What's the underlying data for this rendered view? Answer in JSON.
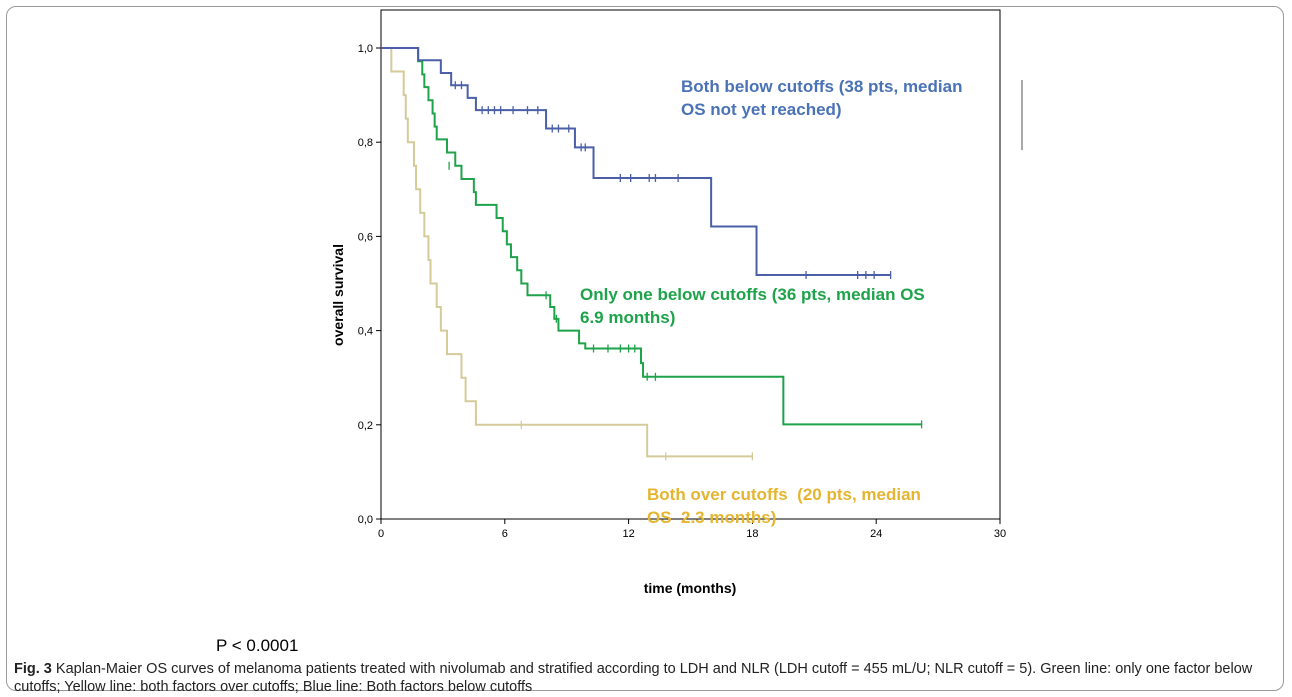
{
  "chart_data": {
    "type": "line",
    "xlabel": "time (months)",
    "ylabel": "overall survival",
    "xlim": [
      0,
      30
    ],
    "ylim": [
      0,
      1.0
    ],
    "x_ticks": [
      0,
      6,
      12,
      18,
      24,
      30
    ],
    "x_tick_labels": [
      "0",
      "6",
      "12",
      "18",
      "24",
      "30"
    ],
    "y_ticks": [
      0,
      0.2,
      0.4,
      0.6,
      0.8,
      1.0
    ],
    "y_tick_labels": [
      "0,0",
      "0,2",
      "0,4",
      "0,6",
      "0,8",
      "1,0"
    ],
    "grid": false,
    "series": [
      {
        "color": "#4a5fa8",
        "steps": [
          [
            0,
            1.0
          ],
          [
            1.8,
            0.974
          ],
          [
            2.9,
            0.947
          ],
          [
            3.4,
            0.921
          ],
          [
            4.2,
            0.894
          ],
          [
            4.6,
            0.868
          ],
          [
            8.0,
            0.829
          ],
          [
            9.4,
            0.789
          ],
          [
            10.3,
            0.724
          ],
          [
            16.0,
            0.621
          ],
          [
            18.2,
            0.518
          ],
          [
            24.7,
            0.518
          ]
        ],
        "censors": [
          [
            3.6,
            0.921
          ],
          [
            3.9,
            0.921
          ],
          [
            4.9,
            0.868
          ],
          [
            5.2,
            0.868
          ],
          [
            5.5,
            0.868
          ],
          [
            5.8,
            0.868
          ],
          [
            6.4,
            0.868
          ],
          [
            7.1,
            0.868
          ],
          [
            7.6,
            0.868
          ],
          [
            8.3,
            0.829
          ],
          [
            8.6,
            0.829
          ],
          [
            9.1,
            0.829
          ],
          [
            9.7,
            0.789
          ],
          [
            9.9,
            0.789
          ],
          [
            11.6,
            0.724
          ],
          [
            12.1,
            0.724
          ],
          [
            13.0,
            0.724
          ],
          [
            13.3,
            0.724
          ],
          [
            14.4,
            0.724
          ],
          [
            20.6,
            0.518
          ],
          [
            23.1,
            0.518
          ],
          [
            23.5,
            0.518
          ],
          [
            23.9,
            0.518
          ],
          [
            24.7,
            0.518
          ]
        ]
      },
      {
        "color": "#1ea34a",
        "steps": [
          [
            0,
            1.0
          ],
          [
            1.8,
            0.972
          ],
          [
            2.0,
            0.944
          ],
          [
            2.1,
            0.917
          ],
          [
            2.3,
            0.889
          ],
          [
            2.5,
            0.861
          ],
          [
            2.6,
            0.833
          ],
          [
            2.7,
            0.806
          ],
          [
            3.2,
            0.778
          ],
          [
            3.6,
            0.75
          ],
          [
            3.9,
            0.722
          ],
          [
            4.5,
            0.694
          ],
          [
            4.6,
            0.667
          ],
          [
            5.6,
            0.639
          ],
          [
            5.9,
            0.611
          ],
          [
            6.1,
            0.583
          ],
          [
            6.3,
            0.556
          ],
          [
            6.6,
            0.528
          ],
          [
            6.8,
            0.5
          ],
          [
            7.1,
            0.475
          ],
          [
            8.2,
            0.45
          ],
          [
            8.4,
            0.425
          ],
          [
            8.6,
            0.4
          ],
          [
            9.6,
            0.373
          ],
          [
            9.9,
            0.362
          ],
          [
            12.6,
            0.331
          ],
          [
            12.7,
            0.302
          ],
          [
            19.5,
            0.201
          ],
          [
            26.2,
            0.201
          ]
        ],
        "censors": [
          [
            3.3,
            0.75
          ],
          [
            8.0,
            0.475
          ],
          [
            8.5,
            0.425
          ],
          [
            10.3,
            0.362
          ],
          [
            11.0,
            0.362
          ],
          [
            11.6,
            0.362
          ],
          [
            12.0,
            0.362
          ],
          [
            12.3,
            0.362
          ],
          [
            12.9,
            0.302
          ],
          [
            13.3,
            0.302
          ],
          [
            26.2,
            0.201
          ]
        ]
      },
      {
        "color": "#d4ca9a",
        "steps": [
          [
            0,
            1.0
          ],
          [
            0.5,
            0.95
          ],
          [
            1.1,
            0.9
          ],
          [
            1.2,
            0.85
          ],
          [
            1.3,
            0.8
          ],
          [
            1.6,
            0.75
          ],
          [
            1.7,
            0.7
          ],
          [
            1.9,
            0.65
          ],
          [
            2.1,
            0.6
          ],
          [
            2.3,
            0.55
          ],
          [
            2.4,
            0.5
          ],
          [
            2.7,
            0.45
          ],
          [
            2.9,
            0.4
          ],
          [
            3.2,
            0.35
          ],
          [
            3.9,
            0.3
          ],
          [
            4.1,
            0.25
          ],
          [
            4.6,
            0.2
          ],
          [
            12.9,
            0.133
          ],
          [
            18.0,
            0.133
          ]
        ],
        "censors": [
          [
            6.8,
            0.2
          ],
          [
            13.8,
            0.133
          ],
          [
            18.0,
            0.133
          ]
        ]
      }
    ],
    "annotations": [
      {
        "lines": [
          "Both below cutoffs (38 pts, median",
          "OS not yet reached)"
        ],
        "color": "#4a72b6"
      },
      {
        "lines": [
          "Only one below cutoffs (36 pts, median OS",
          "6.9 months)"
        ],
        "color": "#1ea34a"
      },
      {
        "lines": [
          "Both over cutoffs  (20 pts, median",
          "OS  2.3 months)"
        ],
        "color": "#e5b530"
      }
    ]
  },
  "p_value": "P < 0.0001",
  "caption": {
    "label": "Fig. 3",
    "text": " Kaplan-Maier OS curves of melanoma patients treated with nivolumab and stratified according to LDH and NLR (LDH cutoff = 455 mL/U; NLR cutoff = 5). Green line: only one factor below cutoffs; Yellow line: both factors over cutoffs; Blue line: Both factors below cutoffs"
  }
}
